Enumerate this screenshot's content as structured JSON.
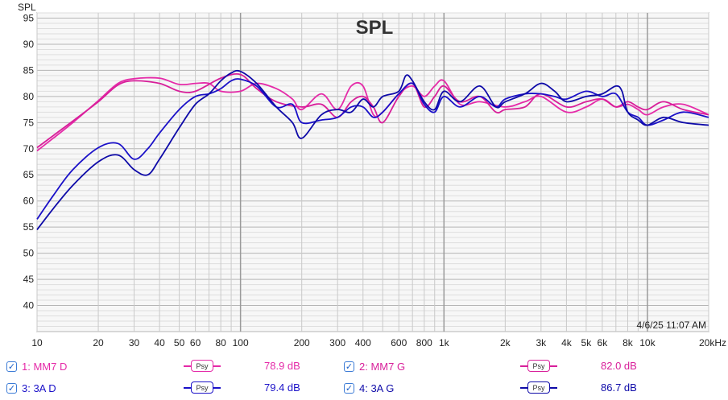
{
  "chart_data": {
    "type": "line",
    "title": "SPL",
    "ylabel": "SPL",
    "xlabel": "",
    "x_scale": "log",
    "xlim": [
      10,
      20000
    ],
    "ylim": [
      35,
      96
    ],
    "yticks": [
      40,
      45,
      50,
      55,
      60,
      65,
      70,
      75,
      80,
      85,
      90,
      95
    ],
    "xticks": [
      {
        "v": 10,
        "label": "10"
      },
      {
        "v": 20,
        "label": "20"
      },
      {
        "v": 30,
        "label": "30"
      },
      {
        "v": 40,
        "label": "40"
      },
      {
        "v": 50,
        "label": "50"
      },
      {
        "v": 60,
        "label": "60"
      },
      {
        "v": 80,
        "label": "80"
      },
      {
        "v": 100,
        "label": "100"
      },
      {
        "v": 200,
        "label": "200"
      },
      {
        "v": 300,
        "label": "300"
      },
      {
        "v": 400,
        "label": "400"
      },
      {
        "v": 600,
        "label": "600"
      },
      {
        "v": 800,
        "label": "800"
      },
      {
        "v": 1000,
        "label": "1k"
      },
      {
        "v": 2000,
        "label": "2k"
      },
      {
        "v": 3000,
        "label": "3k"
      },
      {
        "v": 4000,
        "label": "4k"
      },
      {
        "v": 5000,
        "label": "5k"
      },
      {
        "v": 6000,
        "label": "6k"
      },
      {
        "v": 8000,
        "label": "8k"
      },
      {
        "v": 10000,
        "label": "10k"
      },
      {
        "v": 20000,
        "label": "20kHz"
      }
    ],
    "grid": true,
    "timestamp": "4/6/25 11:07 AM",
    "series": [
      {
        "name": "MM7 D",
        "color": "#e52aa8",
        "points": [
          [
            10,
            69.6
          ],
          [
            12,
            72
          ],
          [
            15,
            75
          ],
          [
            20,
            79.2
          ],
          [
            25,
            82.5
          ],
          [
            30,
            83.4
          ],
          [
            40,
            83.5
          ],
          [
            50,
            82.3
          ],
          [
            60,
            82.5
          ],
          [
            70,
            82.5
          ],
          [
            80,
            81
          ],
          [
            100,
            81
          ],
          [
            120,
            82.5
          ],
          [
            150,
            81.5
          ],
          [
            180,
            79.5
          ],
          [
            200,
            77.5
          ],
          [
            250,
            80.5
          ],
          [
            300,
            77.5
          ],
          [
            350,
            82
          ],
          [
            400,
            82
          ],
          [
            450,
            76.5
          ],
          [
            500,
            77
          ],
          [
            600,
            80.5
          ],
          [
            700,
            82
          ],
          [
            800,
            80
          ],
          [
            900,
            82
          ],
          [
            1000,
            83
          ],
          [
            1200,
            78.5
          ],
          [
            1500,
            79
          ],
          [
            2000,
            78
          ],
          [
            2500,
            79
          ],
          [
            3000,
            80
          ],
          [
            4000,
            77
          ],
          [
            5000,
            78
          ],
          [
            6000,
            79.5
          ],
          [
            7000,
            78
          ],
          [
            8000,
            78.5
          ],
          [
            9000,
            77.5
          ],
          [
            10000,
            76.5
          ],
          [
            12000,
            78
          ],
          [
            15000,
            78.5
          ],
          [
            20000,
            76.5
          ]
        ]
      },
      {
        "name": "MM7 G",
        "color": "#d81f9a",
        "points": [
          [
            10,
            70.2
          ],
          [
            12,
            72.5
          ],
          [
            15,
            75.3
          ],
          [
            20,
            79
          ],
          [
            25,
            82.2
          ],
          [
            30,
            83
          ],
          [
            40,
            82.5
          ],
          [
            50,
            81
          ],
          [
            60,
            81
          ],
          [
            80,
            83.5
          ],
          [
            100,
            84.2
          ],
          [
            120,
            81.5
          ],
          [
            150,
            79
          ],
          [
            200,
            78
          ],
          [
            250,
            78.5
          ],
          [
            300,
            76
          ],
          [
            350,
            79
          ],
          [
            400,
            80
          ],
          [
            450,
            78
          ],
          [
            500,
            75
          ],
          [
            600,
            80
          ],
          [
            700,
            82.5
          ],
          [
            800,
            78
          ],
          [
            900,
            80
          ],
          [
            1000,
            82
          ],
          [
            1200,
            79
          ],
          [
            1500,
            80
          ],
          [
            1800,
            77
          ],
          [
            2000,
            77.5
          ],
          [
            2500,
            78
          ],
          [
            3000,
            80.5
          ],
          [
            4000,
            78
          ],
          [
            5000,
            79
          ],
          [
            6000,
            79.5
          ],
          [
            7000,
            78
          ],
          [
            8000,
            79
          ],
          [
            9000,
            78
          ],
          [
            10000,
            77.5
          ],
          [
            12000,
            79
          ],
          [
            15000,
            77.5
          ],
          [
            20000,
            76.5
          ]
        ]
      },
      {
        "name": "3A D",
        "color": "#1a10c8",
        "points": [
          [
            10,
            56.5
          ],
          [
            12,
            61
          ],
          [
            15,
            66
          ],
          [
            20,
            70.2
          ],
          [
            25,
            71
          ],
          [
            30,
            68
          ],
          [
            35,
            70
          ],
          [
            40,
            73
          ],
          [
            50,
            77.5
          ],
          [
            60,
            80
          ],
          [
            70,
            80.5
          ],
          [
            80,
            81.5
          ],
          [
            90,
            83
          ],
          [
            100,
            83.3
          ],
          [
            120,
            82
          ],
          [
            150,
            78
          ],
          [
            180,
            78.5
          ],
          [
            200,
            75
          ],
          [
            250,
            75.5
          ],
          [
            300,
            76
          ],
          [
            350,
            78
          ],
          [
            400,
            78
          ],
          [
            450,
            76
          ],
          [
            500,
            77
          ],
          [
            600,
            80.5
          ],
          [
            700,
            82.5
          ],
          [
            800,
            78.5
          ],
          [
            900,
            77
          ],
          [
            1000,
            80
          ],
          [
            1200,
            78
          ],
          [
            1500,
            80
          ],
          [
            1800,
            78
          ],
          [
            2000,
            79.5
          ],
          [
            2500,
            80.5
          ],
          [
            3000,
            80.5
          ],
          [
            3500,
            80
          ],
          [
            4000,
            79.5
          ],
          [
            5000,
            81
          ],
          [
            6000,
            80
          ],
          [
            7000,
            80.5
          ],
          [
            8000,
            77
          ],
          [
            9000,
            76
          ],
          [
            10000,
            74.5
          ],
          [
            12000,
            75.5
          ],
          [
            15000,
            77
          ],
          [
            20000,
            76
          ]
        ]
      },
      {
        "name": "3A G",
        "color": "#0e0aa8",
        "points": [
          [
            10,
            54.5
          ],
          [
            12,
            58.5
          ],
          [
            15,
            63
          ],
          [
            20,
            67.5
          ],
          [
            25,
            68.8
          ],
          [
            30,
            66
          ],
          [
            35,
            65
          ],
          [
            40,
            68
          ],
          [
            50,
            74
          ],
          [
            60,
            78.5
          ],
          [
            70,
            80.5
          ],
          [
            80,
            83
          ],
          [
            90,
            84.5
          ],
          [
            100,
            84.8
          ],
          [
            120,
            82.5
          ],
          [
            150,
            78
          ],
          [
            180,
            75
          ],
          [
            200,
            72
          ],
          [
            250,
            76.5
          ],
          [
            300,
            77.5
          ],
          [
            350,
            77
          ],
          [
            400,
            79.5
          ],
          [
            450,
            78
          ],
          [
            500,
            80
          ],
          [
            600,
            81
          ],
          [
            650,
            84
          ],
          [
            700,
            83
          ],
          [
            800,
            79
          ],
          [
            900,
            77.5
          ],
          [
            1000,
            81
          ],
          [
            1200,
            79
          ],
          [
            1500,
            82
          ],
          [
            1800,
            78
          ],
          [
            2000,
            79
          ],
          [
            2500,
            80.5
          ],
          [
            3000,
            82.5
          ],
          [
            3500,
            81
          ],
          [
            4000,
            79
          ],
          [
            5000,
            80
          ],
          [
            6000,
            80.5
          ],
          [
            7000,
            82
          ],
          [
            7500,
            81
          ],
          [
            8000,
            77
          ],
          [
            9000,
            75.5
          ],
          [
            10000,
            74.5
          ],
          [
            12000,
            76
          ],
          [
            15000,
            75
          ],
          [
            20000,
            74.5
          ]
        ]
      }
    ]
  },
  "legend": {
    "items": [
      {
        "label": "1: MM7 D",
        "color": "#e52aa8",
        "psy": "Psy",
        "value": "78.9 dB"
      },
      {
        "label": "2: MM7 G",
        "color": "#d81f9a",
        "psy": "Psy",
        "value": "82.0 dB"
      },
      {
        "label": "3: 3A D",
        "color": "#1a10c8",
        "psy": "Psy",
        "value": "79.4 dB"
      },
      {
        "label": "4: 3A G",
        "color": "#0e0aa8",
        "psy": "Psy",
        "value": "86.7 dB"
      }
    ]
  }
}
